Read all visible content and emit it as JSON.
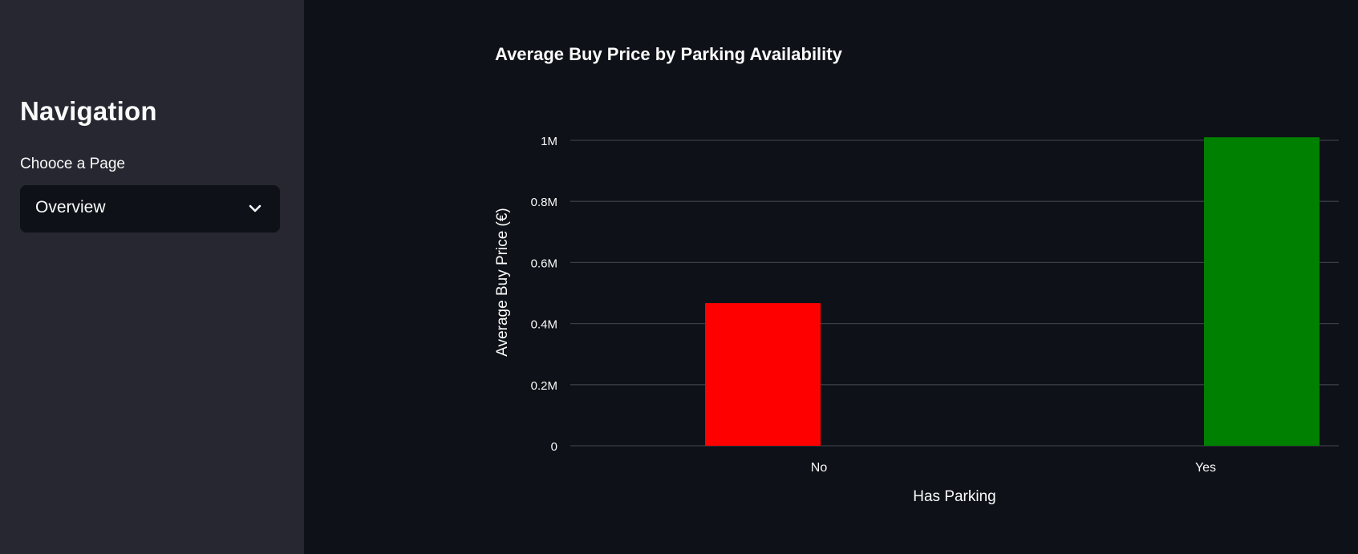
{
  "sidebar": {
    "title": "Navigation",
    "select_label": "Chooce a Page",
    "select_value": "Overview",
    "select_icon": "chevron-down-icon"
  },
  "chart_data": {
    "type": "bar",
    "title": "Average Buy Price by Parking Availability",
    "xlabel": "Has Parking",
    "ylabel": "Average Buy Price (€)",
    "categories": [
      "No",
      "Yes"
    ],
    "values": [
      467000,
      1010000
    ],
    "colors": [
      "#ff0000",
      "#008000"
    ],
    "ylim": [
      0,
      1000000
    ],
    "yticks": [
      0,
      200000,
      400000,
      600000,
      800000,
      1000000
    ],
    "ytick_labels": [
      "0",
      "0.2M",
      "0.4M",
      "0.6M",
      "0.8M",
      "1M"
    ],
    "grid": true
  },
  "colors": {
    "background": "#0e1117",
    "sidebar": "#262730",
    "text": "#fafafa",
    "gridline": "#3a3d45"
  }
}
